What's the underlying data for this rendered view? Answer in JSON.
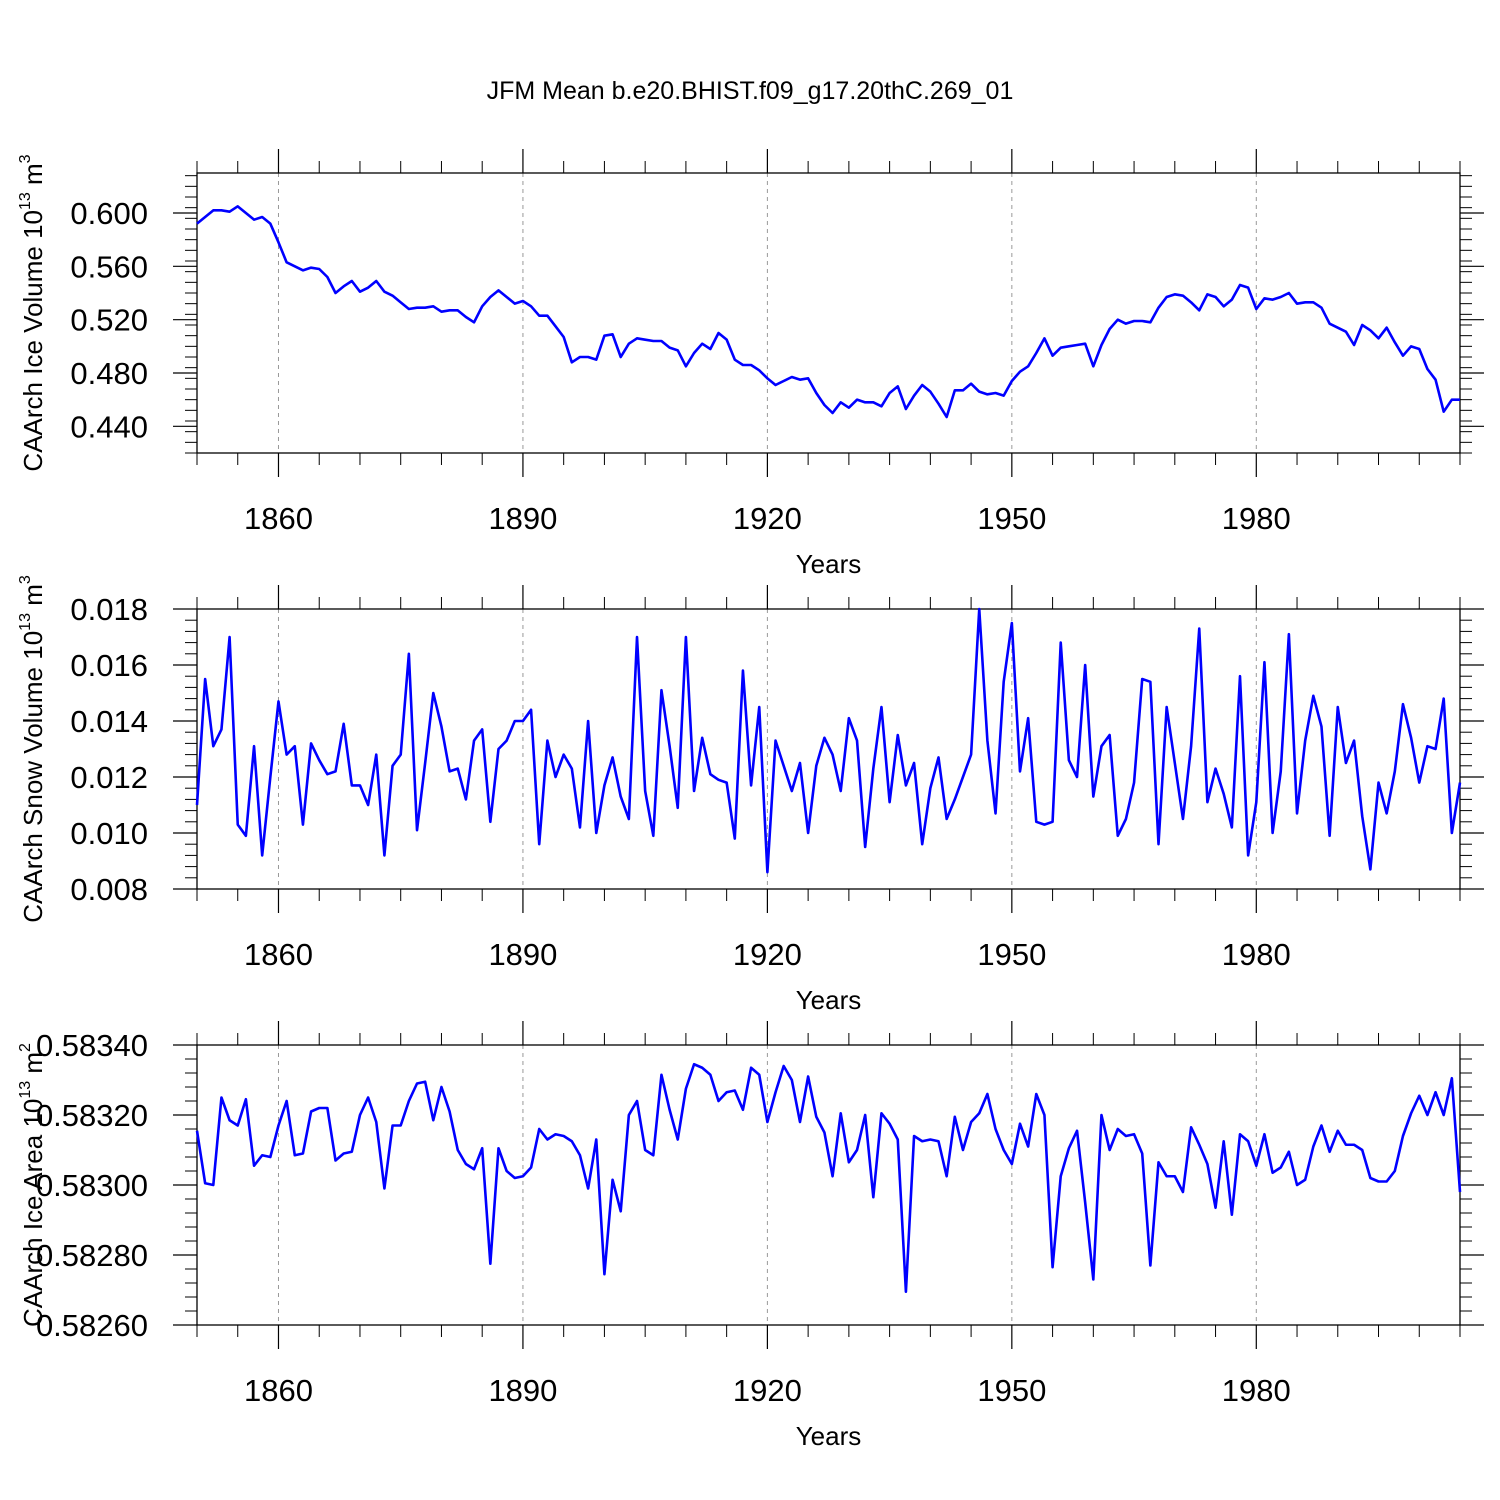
{
  "chart_data": {
    "type": "line",
    "title": "JFM Mean b.e20.BHIST.f09_g17.20thC.269_01",
    "line_color": "#0000ff",
    "panels": [
      {
        "type": "line",
        "ylabel": {
          "main": "CAArch Ice Volume 10",
          "exp": "13",
          "unit": " m",
          "unit_exp": "3"
        },
        "xlabel": "Years",
        "x_start": 1850,
        "x_end": 2005,
        "x_step": 1,
        "xlim": [
          1850,
          2005
        ],
        "ylim": [
          0.42,
          0.63
        ],
        "xticks": [
          1860,
          1890,
          1920,
          1950,
          1980
        ],
        "xtick_labels": [
          "1860",
          "1890",
          "1920",
          "1950",
          "1980"
        ],
        "yticks": [
          0.44,
          0.48,
          0.52,
          0.56,
          0.6
        ],
        "ytick_labels": [
          "0.440",
          "0.480",
          "0.520",
          "0.560",
          "0.600"
        ],
        "values": [
          0.592,
          0.597,
          0.602,
          0.602,
          0.601,
          0.605,
          0.6,
          0.595,
          0.597,
          0.592,
          0.578,
          0.563,
          0.56,
          0.557,
          0.559,
          0.558,
          0.552,
          0.54,
          0.545,
          0.549,
          0.541,
          0.544,
          0.549,
          0.541,
          0.538,
          0.533,
          0.528,
          0.529,
          0.529,
          0.53,
          0.526,
          0.527,
          0.527,
          0.522,
          0.518,
          0.53,
          0.537,
          0.542,
          0.537,
          0.532,
          0.534,
          0.53,
          0.523,
          0.523,
          0.515,
          0.507,
          0.488,
          0.492,
          0.492,
          0.49,
          0.508,
          0.509,
          0.492,
          0.502,
          0.506,
          0.505,
          0.504,
          0.504,
          0.499,
          0.497,
          0.485,
          0.495,
          0.502,
          0.498,
          0.51,
          0.505,
          0.49,
          0.486,
          0.486,
          0.482,
          0.476,
          0.471,
          0.474,
          0.477,
          0.475,
          0.476,
          0.465,
          0.456,
          0.45,
          0.458,
          0.454,
          0.46,
          0.458,
          0.458,
          0.455,
          0.465,
          0.47,
          0.453,
          0.463,
          0.471,
          0.466,
          0.457,
          0.447,
          0.467,
          0.467,
          0.472,
          0.466,
          0.464,
          0.465,
          0.463,
          0.474,
          0.481,
          0.485,
          0.495,
          0.506,
          0.493,
          0.499,
          0.5,
          0.501,
          0.502,
          0.485,
          0.501,
          0.513,
          0.52,
          0.517,
          0.519,
          0.519,
          0.518,
          0.529,
          0.537,
          0.539,
          0.538,
          0.533,
          0.527,
          0.539,
          0.537,
          0.53,
          0.535,
          0.546,
          0.544,
          0.528,
          0.536,
          0.535,
          0.537,
          0.54,
          0.532,
          0.533,
          0.533,
          0.529,
          0.517,
          0.514,
          0.511,
          0.501,
          0.516,
          0.512,
          0.506,
          0.514,
          0.503,
          0.493,
          0.5,
          0.498,
          0.483,
          0.475,
          0.451,
          0.46,
          0.46
        ]
      },
      {
        "type": "line",
        "ylabel": {
          "main": "CAArch Snow Volume 10",
          "exp": "13",
          "unit": " m",
          "unit_exp": "3"
        },
        "xlabel": "Years",
        "x_start": 1850,
        "x_end": 2005,
        "x_step": 1,
        "xlim": [
          1850,
          2005
        ],
        "ylim": [
          0.008,
          0.018
        ],
        "xticks": [
          1860,
          1890,
          1920,
          1950,
          1980
        ],
        "xtick_labels": [
          "1860",
          "1890",
          "1920",
          "1950",
          "1980"
        ],
        "yticks": [
          0.008,
          0.01,
          0.012,
          0.014,
          0.016,
          0.018
        ],
        "ytick_labels": [
          "0.008",
          "0.010",
          "0.012",
          "0.014",
          "0.016",
          "0.018"
        ],
        "values": [
          0.011,
          0.0155,
          0.0131,
          0.0137,
          0.017,
          0.0103,
          0.0099,
          0.0131,
          0.0092,
          0.012,
          0.0147,
          0.0128,
          0.0131,
          0.0103,
          0.0132,
          0.0126,
          0.0121,
          0.0122,
          0.0139,
          0.0117,
          0.0117,
          0.011,
          0.0128,
          0.0092,
          0.0124,
          0.0128,
          0.0164,
          0.0101,
          0.0125,
          0.015,
          0.0138,
          0.0122,
          0.0123,
          0.0112,
          0.0133,
          0.0137,
          0.0104,
          0.013,
          0.0133,
          0.014,
          0.014,
          0.0144,
          0.0096,
          0.0133,
          0.012,
          0.0128,
          0.0123,
          0.0102,
          0.014,
          0.01,
          0.0117,
          0.0127,
          0.0113,
          0.0105,
          0.017,
          0.0115,
          0.0099,
          0.0151,
          0.0131,
          0.0109,
          0.017,
          0.0115,
          0.0134,
          0.0121,
          0.0119,
          0.0118,
          0.0098,
          0.0158,
          0.0117,
          0.0145,
          0.0086,
          0.0133,
          0.0124,
          0.0115,
          0.0125,
          0.01,
          0.0124,
          0.0134,
          0.0128,
          0.0115,
          0.0141,
          0.0133,
          0.0095,
          0.0123,
          0.0145,
          0.0111,
          0.0135,
          0.0117,
          0.0125,
          0.0096,
          0.0116,
          0.0127,
          0.0105,
          0.0112,
          0.012,
          0.0128,
          0.018,
          0.0133,
          0.0107,
          0.0154,
          0.0175,
          0.0122,
          0.0141,
          0.0104,
          0.0103,
          0.0104,
          0.0168,
          0.0126,
          0.012,
          0.016,
          0.0113,
          0.0131,
          0.0135,
          0.0099,
          0.0105,
          0.0118,
          0.0155,
          0.0154,
          0.0096,
          0.0145,
          0.0125,
          0.0105,
          0.0131,
          0.0173,
          0.0111,
          0.0123,
          0.0114,
          0.0102,
          0.0156,
          0.0092,
          0.0111,
          0.0161,
          0.01,
          0.0122,
          0.0171,
          0.0107,
          0.0133,
          0.0149,
          0.0138,
          0.0099,
          0.0145,
          0.0125,
          0.0133,
          0.0106,
          0.0087,
          0.0118,
          0.0107,
          0.0122,
          0.0146,
          0.0134,
          0.0118,
          0.0131,
          0.013,
          0.0148,
          0.01,
          0.0118
        ]
      },
      {
        "type": "line",
        "ylabel": {
          "main": "CAArch Ice Area 10",
          "exp": "13",
          "unit": " m",
          "unit_exp": "2"
        },
        "xlabel": "Years",
        "x_start": 1850,
        "x_end": 2005,
        "x_step": 1,
        "xlim": [
          1850,
          2005
        ],
        "ylim": [
          0.5826,
          0.5834
        ],
        "xticks": [
          1860,
          1890,
          1920,
          1950,
          1980
        ],
        "xtick_labels": [
          "1860",
          "1890",
          "1920",
          "1950",
          "1980"
        ],
        "yticks": [
          0.5826,
          0.5828,
          0.583,
          0.5832,
          0.5834
        ],
        "ytick_labels": [
          "0.58260",
          "0.58280",
          "0.58300",
          "0.58320",
          "0.58340"
        ],
        "values": [
          0.583155,
          0.583005,
          0.583,
          0.58325,
          0.583185,
          0.58317,
          0.583245,
          0.583055,
          0.583085,
          0.58308,
          0.58317,
          0.58324,
          0.583085,
          0.58309,
          0.58321,
          0.58322,
          0.58322,
          0.58307,
          0.58309,
          0.583095,
          0.5832,
          0.58325,
          0.58318,
          0.58299,
          0.58317,
          0.58317,
          0.58324,
          0.58329,
          0.583295,
          0.583185,
          0.58328,
          0.58321,
          0.5831,
          0.58306,
          0.583045,
          0.583105,
          0.582775,
          0.583105,
          0.58304,
          0.58302,
          0.583025,
          0.58305,
          0.58316,
          0.58313,
          0.583145,
          0.58314,
          0.583125,
          0.583085,
          0.58299,
          0.58313,
          0.582745,
          0.583015,
          0.582925,
          0.5832,
          0.58324,
          0.5831,
          0.583085,
          0.583315,
          0.583215,
          0.58313,
          0.583275,
          0.583345,
          0.583335,
          0.583315,
          0.58324,
          0.583265,
          0.58327,
          0.583215,
          0.583335,
          0.583315,
          0.58318,
          0.583265,
          0.58334,
          0.5833,
          0.58318,
          0.58331,
          0.583195,
          0.58315,
          0.583025,
          0.583205,
          0.583065,
          0.5831,
          0.5832,
          0.582965,
          0.583205,
          0.583175,
          0.58313,
          0.582695,
          0.58314,
          0.583125,
          0.58313,
          0.583125,
          0.583025,
          0.583195,
          0.5831,
          0.58318,
          0.583205,
          0.58326,
          0.58316,
          0.5831,
          0.58306,
          0.583175,
          0.58311,
          0.58326,
          0.5832,
          0.582765,
          0.583025,
          0.583105,
          0.583155,
          0.58295,
          0.58273,
          0.5832,
          0.5831,
          0.58316,
          0.58314,
          0.583145,
          0.58309,
          0.58277,
          0.583065,
          0.583025,
          0.583025,
          0.58298,
          0.583165,
          0.583115,
          0.58306,
          0.582935,
          0.583125,
          0.582915,
          0.583145,
          0.583125,
          0.583055,
          0.583145,
          0.583035,
          0.58305,
          0.583095,
          0.583,
          0.583015,
          0.58311,
          0.58317,
          0.583095,
          0.583155,
          0.583115,
          0.583115,
          0.5831,
          0.58302,
          0.58301,
          0.58301,
          0.58304,
          0.58314,
          0.583205,
          0.583255,
          0.5832,
          0.583265,
          0.5832,
          0.583305,
          0.58298
        ]
      }
    ]
  }
}
